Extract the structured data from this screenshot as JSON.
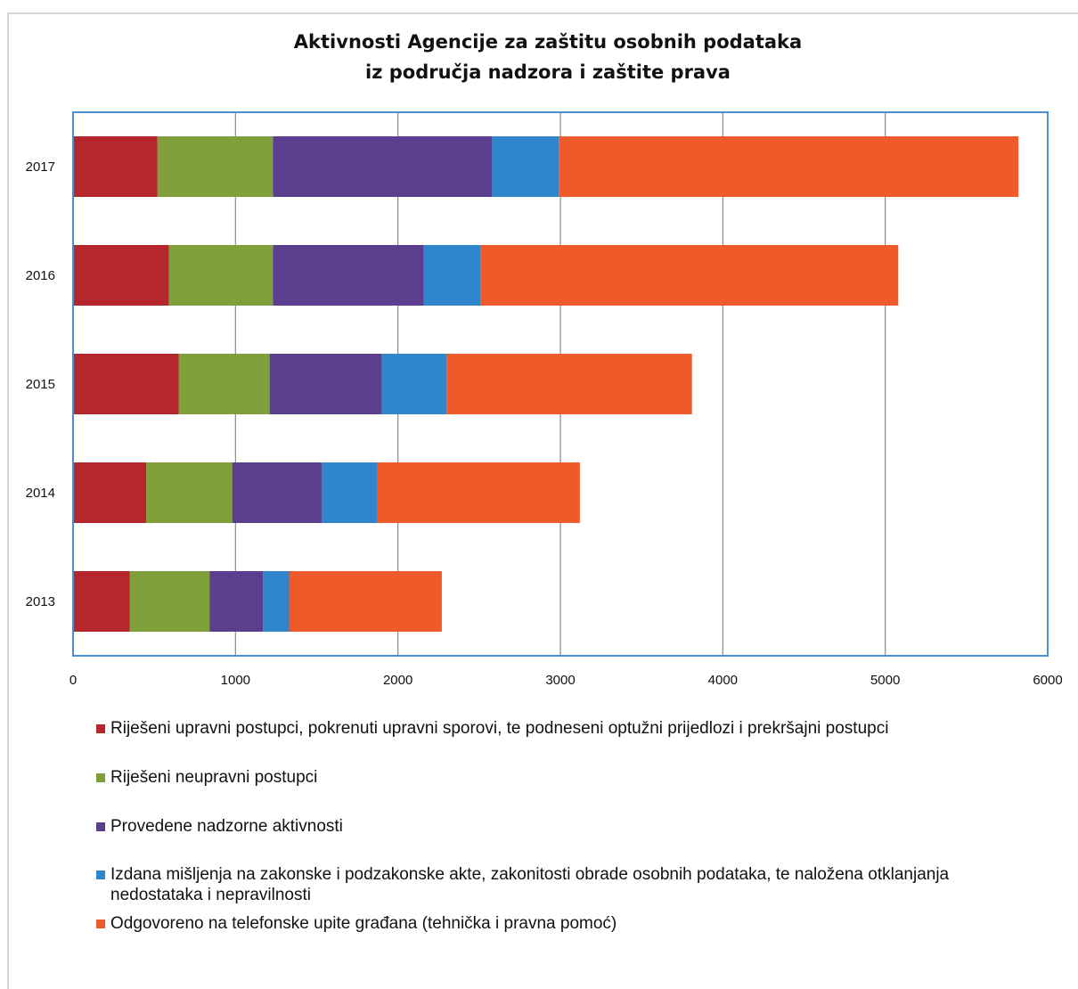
{
  "chart_data": {
    "type": "bar",
    "orientation": "horizontal",
    "stacked": true,
    "title": "Aktivnosti Agencije za zaštitu osobnih podataka",
    "subtitle": "iz područja nadzora i zaštite prava",
    "categories": [
      "2017",
      "2016",
      "2015",
      "2014",
      "2013"
    ],
    "series": [
      {
        "name": "Riješeni upravni postupci, pokrenuti upravni sporovi, te podneseni optužni prijedlozi i prekršajni postupci",
        "color": "#b5262d",
        "values": [
          520,
          590,
          650,
          450,
          350
        ]
      },
      {
        "name": "Riješeni neupravni postupci",
        "color": "#7f9f3a",
        "values": [
          710,
          640,
          560,
          530,
          490
        ]
      },
      {
        "name": "Provedene nadzorne aktivnosti",
        "color": "#5b3f8e",
        "values": [
          1350,
          930,
          690,
          550,
          330
        ]
      },
      {
        "name": "Izdana mišljenja na zakonske i podzakonske akte, zakonitosti obrade osobnih podataka, te naložena otklanjanja nedostataka i nepravilnosti",
        "color": "#2f86cc",
        "values": [
          410,
          350,
          400,
          340,
          160
        ]
      },
      {
        "name": "Odgovoreno na telefonske upite građana (tehnička i pravna pomoć)",
        "color": "#ee5a2a",
        "values": [
          2830,
          2570,
          1510,
          1250,
          940
        ]
      }
    ],
    "xlim": [
      0,
      6000
    ],
    "xticks": [
      0,
      1000,
      2000,
      3000,
      4000,
      5000,
      6000
    ],
    "grid": true,
    "legend_position": "bottom"
  }
}
